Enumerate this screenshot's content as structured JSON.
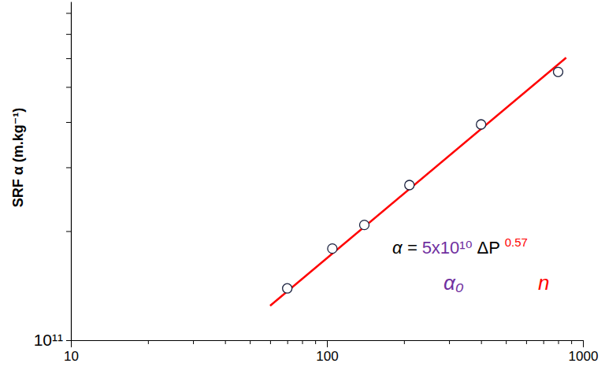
{
  "chart_data": {
    "type": "scatter",
    "y_label": "SRF α (m.kg⁻¹)",
    "log": true,
    "grid": false,
    "xlim": [
      10,
      1000
    ],
    "xticks": [
      10,
      {
        "value": 20,
        "label": null
      },
      {
        "value": 30,
        "label": null
      },
      {
        "value": 40,
        "label": null
      },
      {
        "value": 50,
        "label": null
      },
      {
        "value": 60,
        "label": null
      },
      {
        "value": 70,
        "label": null
      },
      {
        "value": 80,
        "label": null
      },
      {
        "value": 90,
        "label": null
      },
      100,
      {
        "value": 200,
        "label": null
      },
      {
        "value": 300,
        "label": null
      },
      {
        "value": 400,
        "label": null
      },
      {
        "value": 500,
        "label": null
      },
      {
        "value": 600,
        "label": null
      },
      {
        "value": 700,
        "label": null
      },
      {
        "value": 800,
        "label": null
      },
      {
        "value": 900,
        "label": null
      },
      1000
    ],
    "ylim": [
      100000000000,
      860000000000
    ],
    "yticks": [
      {
        "value": 100000000000,
        "label": "10¹¹"
      },
      {
        "value": 200000000000,
        "label": null
      },
      {
        "value": 300000000000,
        "label": null
      },
      {
        "value": 400000000000,
        "label": null
      },
      {
        "value": 500000000000,
        "label": null
      },
      {
        "value": 600000000000,
        "label": null
      },
      {
        "value": 700000000000,
        "label": null
      },
      {
        "value": 800000000000,
        "label": null
      }
    ],
    "series": [
      {
        "type": "scatter",
        "marker": "open-circle",
        "color": "#1c2340",
        "x": [
          70,
          105,
          140,
          210,
          400,
          800
        ],
        "values": [
          139000000000,
          179000000000,
          208000000000,
          268000000000,
          394000000000,
          550000000000
        ]
      },
      {
        "type": "line",
        "line_style": "solid",
        "color": "#ff0000",
        "x": [
          60,
          860
        ],
        "values": [
          124500000000,
          602000000000
        ]
      }
    ],
    "annotations": [
      "α = ",
      "5x10¹⁰",
      " ΔP ",
      "0.57",
      "α₀",
      "n"
    ]
  }
}
